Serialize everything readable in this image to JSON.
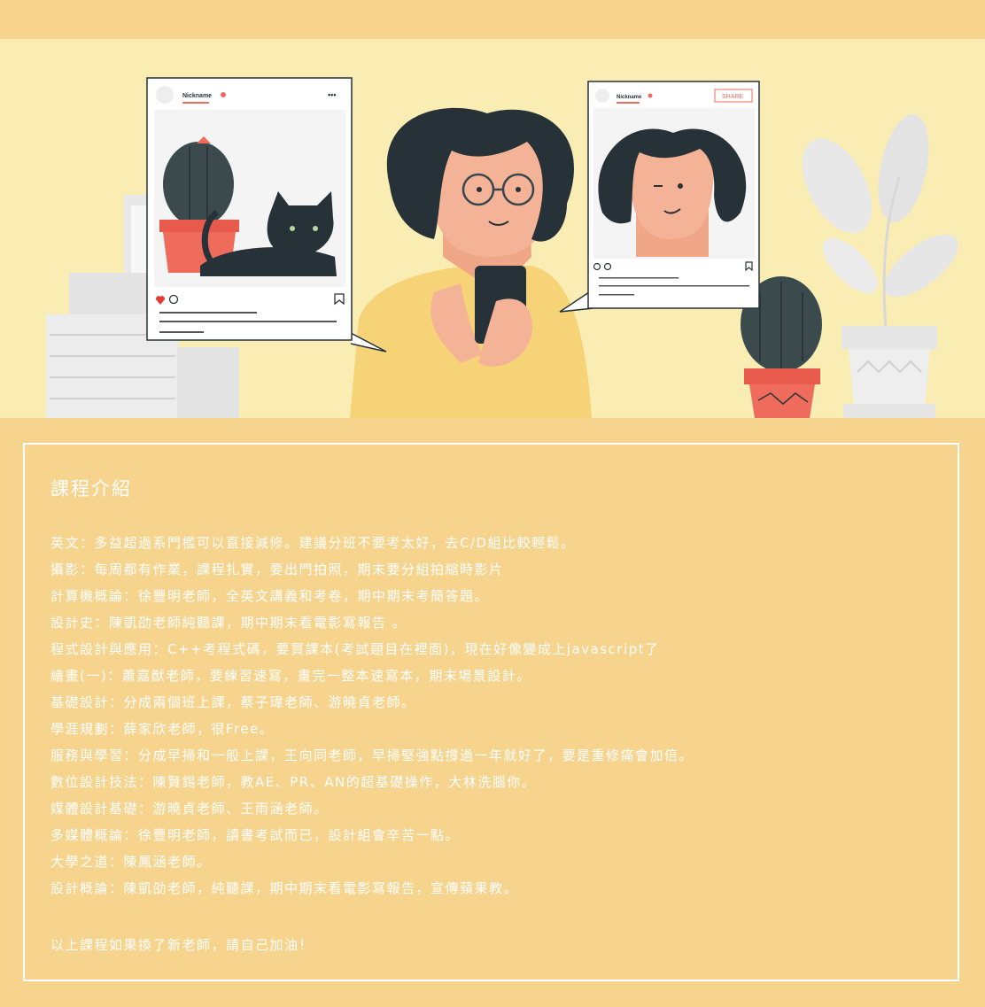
{
  "scene": {
    "post_left": {
      "nickname": "Nickname",
      "more": "•••"
    },
    "post_right": {
      "nickname": "Nickname",
      "share_label": "SHARE"
    }
  },
  "intro": {
    "title": "課程介紹",
    "courses": [
      "英文：多益超過系門檻可以直接減修。建議分班不要考太好，去C/D組比較輕鬆。",
      "攝影：每周都有作業，課程扎實，要出門拍照，期末要分組拍縮時影片",
      "計算機概論：徐豐明老師，全英文講義和考卷，期中期末考簡答題。",
      "設計史：陳凱劭老師純聽課，期中期末看電影寫報告 。",
      "程式設計與應用：C++考程式碼，要買課本(考試題目在裡面)，現在好像變成上javascript了",
      "繪畫(一)：蕭嘉猷老師，要練習速寫，畫完一整本速寫本，期末場景設計。",
      "基礎設計：分成兩個班上課，蔡子瑋老師、游曉貞老師。",
      "學涯規劃：薛家欣老師，很Free。",
      "服務與學習：分成早掃和一般上課，王向同老師，早掃堅強點撐過一年就好了，要是重修痛會加倍。",
      "數位設計技法：陳賢錫老師，教AE、PR、AN的超基礎操作，大林洗腦你。",
      "媒體設計基礎：游曉貞老師、王雨涵老師。",
      "多媒體概論：徐豐明老師，讀書考試而已，設計組會辛苦一點。",
      "大學之道：陳鳳涵老師。",
      "設計概論：陳凱劭老師，純聽課，期中期末看電影寫報告，宣傳蘋果教。"
    ],
    "footer": "以上課程如果換了新老師，請自己加油！"
  }
}
